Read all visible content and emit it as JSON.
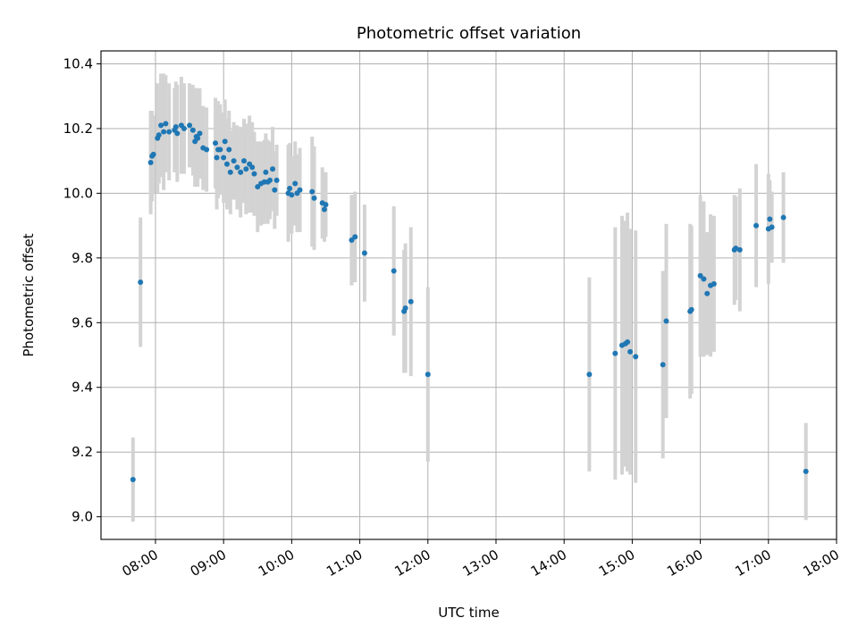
{
  "chart_data": {
    "type": "scatter",
    "title": "Photometric offset variation",
    "xlabel": "UTC time",
    "ylabel": "Photometric offset",
    "x_unit": "hours UTC",
    "xlim": [
      7.2,
      18.0
    ],
    "ylim": [
      8.93,
      10.44
    ],
    "x_ticks": [
      8,
      9,
      10,
      11,
      12,
      13,
      14,
      15,
      16,
      17,
      18
    ],
    "x_tick_labels": [
      "08:00",
      "09:00",
      "10:00",
      "11:00",
      "12:00",
      "13:00",
      "14:00",
      "15:00",
      "16:00",
      "17:00",
      "18:00"
    ],
    "y_ticks": [
      9.0,
      9.2,
      9.4,
      9.6,
      9.8,
      10.0,
      10.2,
      10.4
    ],
    "y_tick_labels": [
      "9.0",
      "9.2",
      "9.4",
      "9.6",
      "9.8",
      "10.0",
      "10.2",
      "10.4"
    ],
    "grid": true,
    "colors": {
      "marker": "#1f77b4",
      "errorbar": "#d3d3d3",
      "grid": "#b0b0b0"
    },
    "series": [
      {
        "x": [
          7.67,
          7.78,
          7.93,
          7.95,
          7.97,
          8.03,
          8.05,
          8.08,
          8.12,
          8.15,
          8.2,
          8.28,
          8.3,
          8.32,
          8.38,
          8.42,
          8.5,
          8.55,
          8.58,
          8.6,
          8.62,
          8.65,
          8.7,
          8.75,
          8.88,
          8.9,
          8.92,
          8.95,
          9.0,
          9.02,
          9.05,
          9.08,
          9.1,
          9.15,
          9.2,
          9.25,
          9.3,
          9.33,
          9.38,
          9.42,
          9.45,
          9.5,
          9.55,
          9.6,
          9.62,
          9.65,
          9.68,
          9.72,
          9.75,
          9.78,
          9.95,
          9.97,
          10.0,
          10.05,
          10.08,
          10.12,
          10.3,
          10.33,
          10.45,
          10.48,
          10.5,
          10.88,
          10.93,
          11.07,
          11.5,
          11.65,
          11.67,
          11.75,
          12.0,
          14.37,
          14.75,
          14.85,
          14.9,
          14.93,
          14.97,
          15.05,
          15.45,
          15.5,
          15.85,
          15.87,
          16.0,
          16.05,
          16.1,
          16.15,
          16.2,
          16.5,
          16.52,
          16.58,
          16.82,
          17.0,
          17.02,
          17.05,
          17.22,
          17.55
        ],
        "y": [
          9.115,
          9.725,
          10.095,
          10.115,
          10.12,
          10.17,
          10.18,
          10.21,
          10.19,
          10.215,
          10.19,
          10.195,
          10.205,
          10.185,
          10.21,
          10.2,
          10.21,
          10.195,
          10.16,
          10.175,
          10.17,
          10.185,
          10.14,
          10.135,
          10.155,
          10.11,
          10.135,
          10.135,
          10.11,
          10.16,
          10.09,
          10.135,
          10.065,
          10.1,
          10.08,
          10.065,
          10.1,
          10.075,
          10.09,
          10.08,
          10.06,
          10.02,
          10.03,
          10.035,
          10.065,
          10.035,
          10.04,
          10.075,
          10.01,
          10.04,
          10.0,
          10.015,
          9.995,
          10.03,
          10.0,
          10.01,
          10.005,
          9.985,
          9.97,
          9.95,
          9.965,
          9.855,
          9.865,
          9.815,
          9.76,
          9.635,
          9.645,
          9.665,
          9.44,
          9.44,
          9.505,
          9.53,
          9.535,
          9.54,
          9.51,
          9.495,
          9.47,
          9.605,
          9.635,
          9.64,
          9.745,
          9.735,
          9.69,
          9.715,
          9.72,
          9.825,
          9.83,
          9.825,
          9.9,
          9.89,
          9.92,
          9.895,
          9.925,
          9.14
        ],
        "yerr": [
          0.13,
          0.2,
          0.16,
          0.14,
          0.12,
          0.17,
          0.15,
          0.16,
          0.18,
          0.15,
          0.15,
          0.13,
          0.14,
          0.15,
          0.15,
          0.14,
          0.13,
          0.14,
          0.14,
          0.15,
          0.15,
          0.14,
          0.13,
          0.13,
          0.14,
          0.16,
          0.15,
          0.14,
          0.14,
          0.13,
          0.14,
          0.12,
          0.13,
          0.12,
          0.13,
          0.14,
          0.13,
          0.14,
          0.15,
          0.14,
          0.13,
          0.14,
          0.13,
          0.13,
          0.12,
          0.13,
          0.12,
          0.13,
          0.12,
          0.11,
          0.15,
          0.14,
          0.12,
          0.13,
          0.12,
          0.13,
          0.17,
          0.16,
          0.11,
          0.1,
          0.1,
          0.14,
          0.14,
          0.15,
          0.2,
          0.19,
          0.2,
          0.23,
          0.27,
          0.3,
          0.39,
          0.4,
          0.38,
          0.4,
          0.38,
          0.39,
          0.29,
          0.3,
          0.27,
          0.26,
          0.25,
          0.24,
          0.19,
          0.22,
          0.21,
          0.17,
          0.16,
          0.19,
          0.19,
          0.17,
          0.12,
          0.11,
          0.14,
          0.15
        ]
      }
    ]
  }
}
